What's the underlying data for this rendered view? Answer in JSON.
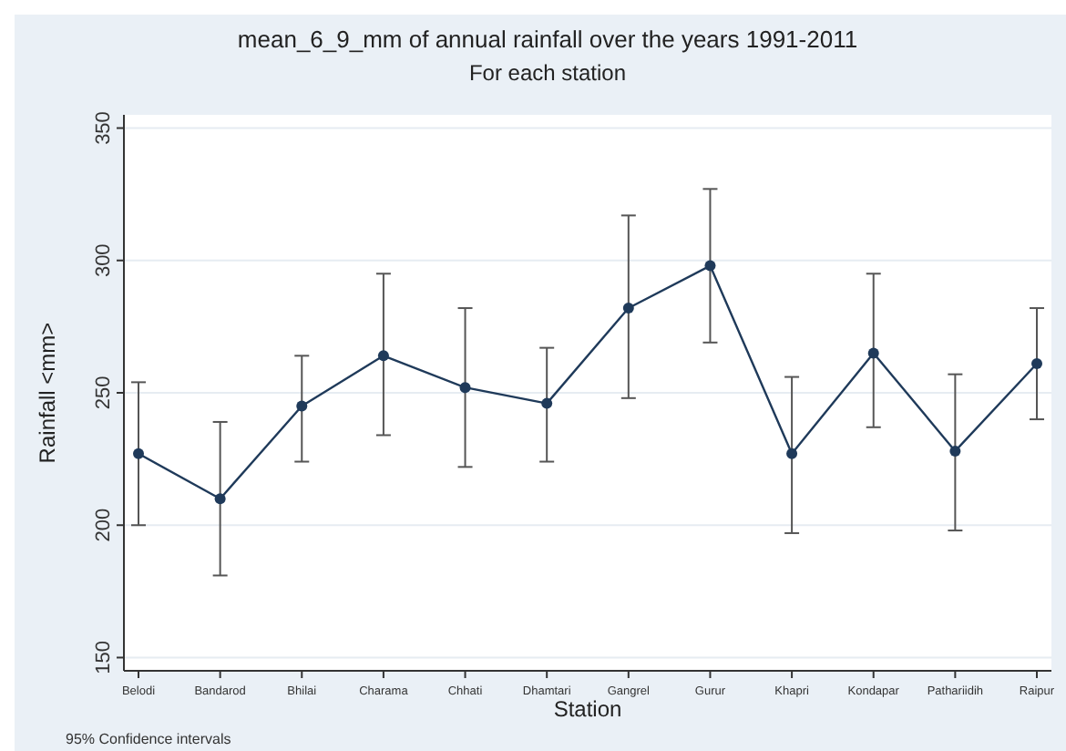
{
  "chart_data": {
    "type": "line",
    "title": "mean_6_9_mm of annual rainfall over the years 1991-2011",
    "subtitle": "For each station",
    "xlabel": "Station",
    "ylabel": "Rainfall <mm>",
    "categories": [
      "Belodi",
      "Bandarod",
      "Bhilai",
      "Charama",
      "Chhati",
      "Dhamtari",
      "Gangrel",
      "Gurur",
      "Khapri",
      "Kondapar",
      "Pathariidih",
      "Raipur"
    ],
    "series": [
      {
        "color": "#1f3a5a",
        "values": [
          227,
          210,
          245,
          264,
          252,
          246,
          282,
          298,
          227,
          265,
          228,
          261
        ],
        "errors": [
          [
            200,
            254
          ],
          [
            181,
            239
          ],
          [
            224,
            264
          ],
          [
            234,
            295
          ],
          [
            222,
            282
          ],
          [
            224,
            267
          ],
          [
            248,
            317
          ],
          [
            269,
            327
          ],
          [
            197,
            256
          ],
          [
            237,
            295
          ],
          [
            198,
            257
          ],
          [
            240,
            282
          ]
        ]
      }
    ],
    "ylim": [
      145,
      355
    ],
    "yticks": [
      150,
      200,
      250,
      300,
      350
    ],
    "grid": "y",
    "marker": "circle",
    "line_style": "solid",
    "annotations": [
      "95% Confidence intervals"
    ]
  }
}
